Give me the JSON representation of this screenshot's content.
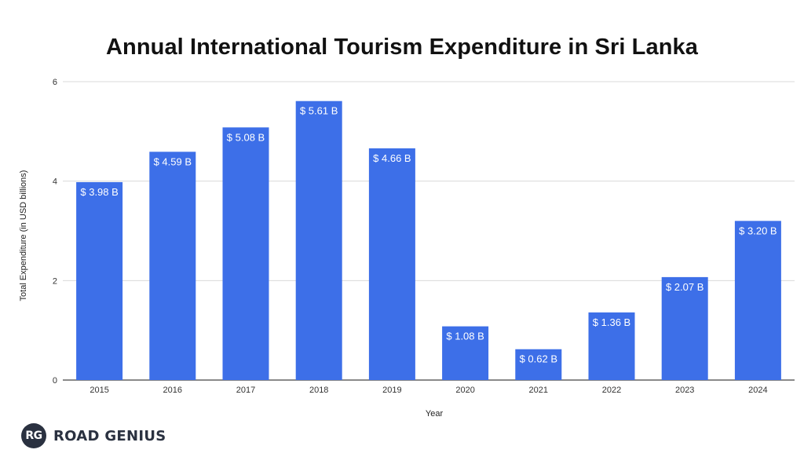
{
  "chart_data": {
    "type": "bar",
    "title": "Annual International Tourism Expenditure in Sri Lanka",
    "xlabel": "Year",
    "ylabel": "Total Expenditure (in USD billions)",
    "categories": [
      "2015",
      "2016",
      "2017",
      "2018",
      "2019",
      "2020",
      "2021",
      "2022",
      "2023",
      "2024"
    ],
    "values": [
      3.98,
      4.59,
      5.08,
      5.61,
      4.66,
      1.08,
      0.62,
      1.36,
      2.07,
      3.2
    ],
    "data_labels": [
      "$ 3.98 B",
      "$ 4.59 B",
      "$ 5.08 B",
      "$ 5.61 B",
      "$ 4.66 B",
      "$ 1.08 B",
      "$ 0.62 B",
      "$ 1.36 B",
      "$ 2.07 B",
      "$ 3.20 B"
    ],
    "ylim": [
      0,
      6
    ],
    "yticks": [
      0,
      2,
      4,
      6
    ],
    "grid": true,
    "bar_color": "#3d6fe8",
    "grid_color": "#d9d9d9"
  },
  "brand": {
    "logo_text": "RG",
    "name": "ROAD GENIUS"
  }
}
